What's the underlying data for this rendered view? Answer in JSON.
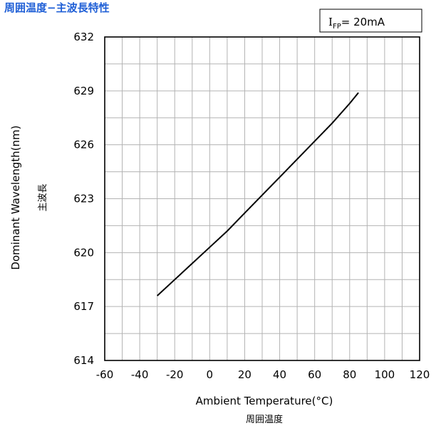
{
  "chart_data": {
    "type": "line",
    "title": "周囲温度−主波長特性",
    "condition": {
      "main": "I",
      "sub": "FP",
      "rest": "= 20mA"
    },
    "xlabel": "Ambient Temperature(°C)",
    "xlabel_sub": "周囲温度",
    "ylabel": "Dominant Wavelength(nm)",
    "ylabel_sub": "主波長",
    "xlim": [
      -60,
      120
    ],
    "ylim": [
      614,
      632
    ],
    "x_ticks": [
      -60,
      -40,
      -20,
      0,
      20,
      40,
      60,
      80,
      100,
      120
    ],
    "y_ticks": [
      614,
      617,
      620,
      623,
      626,
      629,
      632
    ],
    "x_minor_step": 10,
    "y_minor_step": 1.5,
    "grid": true,
    "line_color": "#000000",
    "grid_color": "#b3b3b3",
    "title_color": "#1f5fd6",
    "series": [
      {
        "x": [
          -30,
          -20,
          -10,
          0,
          10,
          20,
          30,
          40,
          50,
          60,
          70,
          80,
          85
        ],
        "y": [
          617.6,
          618.5,
          619.4,
          620.3,
          621.2,
          622.2,
          623.2,
          624.2,
          625.2,
          626.2,
          627.2,
          628.3,
          628.9
        ]
      }
    ]
  }
}
